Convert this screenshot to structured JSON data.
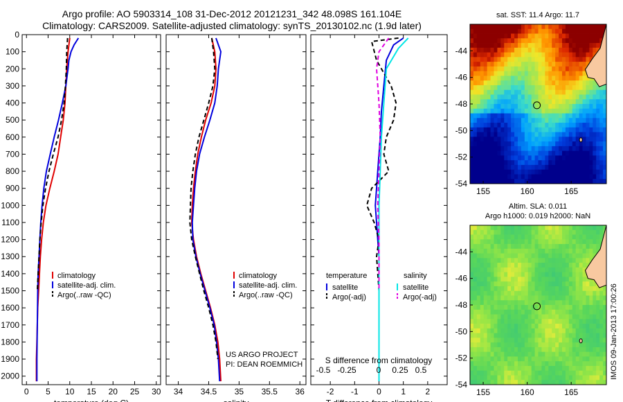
{
  "header": {
    "line1": "Argo profile: AO 5903314_108 31-Dec-2012 20121231_342 48.098S 161.104E",
    "line2": "Climatology: CARS2009. Satellite-adjusted climatology: synTS_20130102.nc (1.9d later)"
  },
  "colors": {
    "climatology": "#e00000",
    "satellite": "#0000dd",
    "argo": "#000000",
    "sat_salinity": "#00e5e5",
    "argo_salinity": "#e000e0"
  },
  "chart_data": [
    {
      "type": "line",
      "id": "temperature",
      "xlabel": "temperature (deg C)",
      "ylabel": "",
      "xlim": [
        -1,
        31
      ],
      "ylim": [
        2050,
        0
      ],
      "xticks": [
        0,
        5,
        10,
        15,
        20,
        25,
        30
      ],
      "yticks": [
        0,
        100,
        200,
        300,
        400,
        500,
        600,
        700,
        800,
        900,
        1000,
        1100,
        1200,
        1300,
        1400,
        1500,
        1600,
        1700,
        1800,
        1900,
        2000
      ],
      "legend": [
        "climatology",
        "satellite-adj. clim.",
        "Argo(..raw -QC)"
      ],
      "series": [
        {
          "name": "climatology",
          "color": "#e00000",
          "dash": false,
          "x": [
            10.0,
            9.6,
            9.3,
            9.1,
            8.9,
            8.5,
            7.9,
            7.3,
            6.4,
            5.4,
            4.5,
            3.9,
            3.5,
            3.2,
            3.0,
            2.8,
            2.6,
            2.5,
            2.4,
            2.3,
            2.3
          ],
          "y": [
            20,
            100,
            200,
            300,
            400,
            500,
            600,
            700,
            800,
            900,
            1000,
            1100,
            1200,
            1300,
            1400,
            1500,
            1600,
            1700,
            1800,
            1900,
            2030
          ]
        },
        {
          "name": "satellite-adj. clim.",
          "color": "#0000dd",
          "dash": false,
          "x": [
            12.0,
            11.0,
            10.3,
            9.8,
            9.6,
            9.1,
            8.3,
            7.4,
            6.4,
            5.5,
            4.6,
            4.0,
            3.6,
            3.3,
            3.1,
            2.9,
            2.7,
            2.6,
            2.5,
            2.4,
            2.4
          ],
          "y": [
            20,
            60,
            100,
            150,
            200,
            300,
            400,
            500,
            600,
            700,
            800,
            900,
            1000,
            1100,
            1200,
            1300,
            1400,
            1500,
            1700,
            1900,
            2030
          ]
        },
        {
          "name": "Argo(..raw -QC)",
          "color": "#000000",
          "dash": true,
          "x": [
            9.5,
            9.3,
            9.2,
            9.0,
            8.7,
            8.1,
            7.3,
            6.2,
            5.2,
            4.4,
            3.8,
            3.4,
            3.1,
            2.9,
            2.7,
            2.5
          ],
          "y": [
            20,
            100,
            200,
            300,
            400,
            500,
            600,
            700,
            800,
            900,
            1000,
            1100,
            1200,
            1300,
            1400,
            1500
          ]
        }
      ]
    },
    {
      "type": "line",
      "id": "salinity",
      "xlabel": "salinity",
      "ylabel": "",
      "xlim": [
        33.8,
        36.1
      ],
      "ylim": [
        2050,
        0
      ],
      "xticks": [
        34,
        34.5,
        35,
        35.5,
        36
      ],
      "legend": [
        "climatology",
        "satellite-adj. clim.",
        "Argo(..raw -QC)"
      ],
      "annotation": [
        "US ARGO PROJECT",
        "PI: DEAN ROEMMICH"
      ],
      "series": [
        {
          "name": "climatology",
          "color": "#e00000",
          "dash": false,
          "x": [
            34.55,
            34.6,
            34.62,
            34.6,
            34.54,
            34.45,
            34.38,
            34.32,
            34.28,
            34.25,
            34.23,
            34.22,
            34.25,
            34.3,
            34.37,
            34.45,
            34.53,
            34.6,
            34.65,
            34.68,
            34.7
          ],
          "y": [
            20,
            100,
            200,
            300,
            400,
            500,
            600,
            700,
            800,
            900,
            1000,
            1100,
            1200,
            1300,
            1400,
            1500,
            1600,
            1700,
            1800,
            1900,
            2030
          ]
        },
        {
          "name": "satellite-adj. clim.",
          "color": "#0000dd",
          "dash": false,
          "x": [
            34.62,
            34.7,
            34.66,
            34.64,
            34.6,
            34.52,
            34.43,
            34.35,
            34.3,
            34.27,
            34.25,
            34.23,
            34.24,
            34.29,
            34.36,
            34.44,
            34.52,
            34.59,
            34.63,
            34.66,
            34.68
          ],
          "y": [
            20,
            100,
            200,
            300,
            400,
            500,
            600,
            700,
            800,
            900,
            1000,
            1100,
            1200,
            1300,
            1400,
            1500,
            1600,
            1700,
            1800,
            1900,
            2030
          ]
        },
        {
          "name": "Argo(..raw -QC)",
          "color": "#000000",
          "dash": true,
          "x": [
            34.55,
            34.58,
            34.6,
            34.57,
            34.5,
            34.42,
            34.34,
            34.28,
            34.24,
            34.21,
            34.2,
            34.19,
            34.22,
            34.28,
            34.35,
            34.42,
            34.5,
            34.57,
            34.62,
            34.65
          ],
          "y": [
            20,
            100,
            200,
            300,
            400,
            500,
            600,
            700,
            800,
            900,
            1000,
            1100,
            1200,
            1300,
            1400,
            1500,
            1600,
            1700,
            1800,
            1900
          ]
        }
      ]
    },
    {
      "type": "line",
      "id": "difference",
      "xlabel": "T difference from climatology",
      "xlabel_top": "S difference from climatology",
      "ylabel": "",
      "xlim": [
        -2.8,
        2.8
      ],
      "ylim": [
        2050,
        0
      ],
      "xticks": [
        -2,
        -1,
        0,
        1,
        2
      ],
      "xticks_s": [
        "-0.5",
        "-0.25",
        "0",
        "0.25",
        "0.5"
      ],
      "legend_titles": [
        "temperature",
        "salinity"
      ],
      "legend": [
        "satellite",
        "Argo(-adj)",
        "satellite",
        "Argo(-adj)"
      ],
      "series": [
        {
          "name": "satellite",
          "group": "temperature",
          "color": "#0000dd",
          "dash": false,
          "x": [
            1.0,
            0.6,
            0.3,
            0.2,
            0.1,
            0.05,
            0.0,
            -0.05,
            -0.1,
            -0.15,
            -0.1,
            -0.05,
            0.0,
            0.0,
            0.0,
            0.0,
            0.0,
            0.0
          ],
          "y": [
            20,
            60,
            150,
            300,
            450,
            600,
            700,
            800,
            900,
            1000,
            1100,
            1200,
            1300,
            1500,
            1600,
            1700,
            1800,
            2030
          ]
        },
        {
          "name": "Argo(-adj)",
          "group": "temperature",
          "color": "#000000",
          "dash": true,
          "x": [
            0.8,
            -0.3,
            -0.1,
            0.5,
            0.7,
            0.6,
            0.3,
            0.2,
            0.4,
            -0.3,
            -0.5,
            -0.2,
            0.0,
            -0.1,
            0.0
          ],
          "y": [
            20,
            40,
            150,
            300,
            400,
            500,
            600,
            700,
            800,
            900,
            1000,
            1100,
            1200,
            1300,
            1500
          ]
        },
        {
          "name": "satellite",
          "group": "salinity",
          "color": "#00e5e5",
          "dash": false,
          "x": [
            1.2,
            0.8,
            0.3,
            0.2,
            0.1,
            0.05,
            0.0,
            0.0,
            0.0,
            0.0
          ],
          "y": [
            20,
            80,
            200,
            400,
            600,
            800,
            1000,
            1400,
            1800,
            2030
          ]
        },
        {
          "name": "Argo(-adj)",
          "group": "salinity",
          "color": "#e000e0",
          "dash": true,
          "x": [
            0.4,
            0.0,
            -0.1,
            0.0,
            0.05,
            0.0,
            -0.05,
            0.0,
            0.0
          ],
          "y": [
            20,
            100,
            200,
            400,
            600,
            800,
            1000,
            1200,
            1500
          ]
        }
      ]
    },
    {
      "type": "heatmap",
      "id": "sst-map",
      "title": "sat. SST: 11.4  Argo: 11.7",
      "xlim": [
        153.5,
        169
      ],
      "ylim": [
        -54,
        -42
      ],
      "xticks": [
        155,
        160,
        165
      ],
      "yticks": [
        -44,
        -46,
        -48,
        -50,
        -52,
        -54
      ],
      "marker": {
        "lon": 161.1,
        "lat": -48.1
      }
    },
    {
      "type": "heatmap",
      "id": "sla-map",
      "title": "Altim. SLA: 0.011",
      "subtitle": "Argo h1000: 0.019 h2000: NaN",
      "xlim": [
        153.5,
        169
      ],
      "ylim": [
        -54,
        -42
      ],
      "xticks": [
        155,
        160,
        165
      ],
      "yticks": [
        -44,
        -46,
        -48,
        -50,
        -52,
        -54
      ],
      "marker": {
        "lon": 161.1,
        "lat": -48.1
      }
    }
  ],
  "footer": {
    "stamp": "IMOS 09-Jan-2013 17:00:26"
  }
}
